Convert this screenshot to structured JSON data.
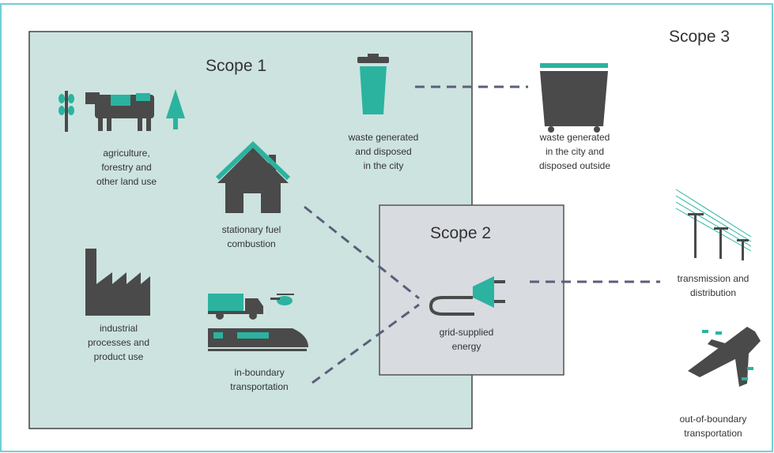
{
  "scopes": [
    {
      "title": "Scope 1"
    },
    {
      "title": "Scope 2"
    },
    {
      "title": "Scope 3"
    }
  ],
  "nodes": [
    {
      "label": [
        "agriculture,",
        "forestry and",
        "other land use"
      ]
    },
    {
      "label": [
        "waste generated",
        "and disposed",
        "in the city"
      ]
    },
    {
      "label": [
        "waste generated",
        "in the city and",
        "disposed outside"
      ]
    },
    {
      "label": [
        "stationary fuel",
        "combustion"
      ]
    },
    {
      "label": [
        "industrial",
        "processes and",
        "product use"
      ]
    },
    {
      "label": [
        "in-boundary",
        "transportation"
      ]
    },
    {
      "label": [
        "grid-supplied",
        "energy"
      ]
    },
    {
      "label": [
        "transmission and",
        "distribution"
      ]
    },
    {
      "label": [
        "out-of-boundary",
        "transportation"
      ]
    }
  ]
}
